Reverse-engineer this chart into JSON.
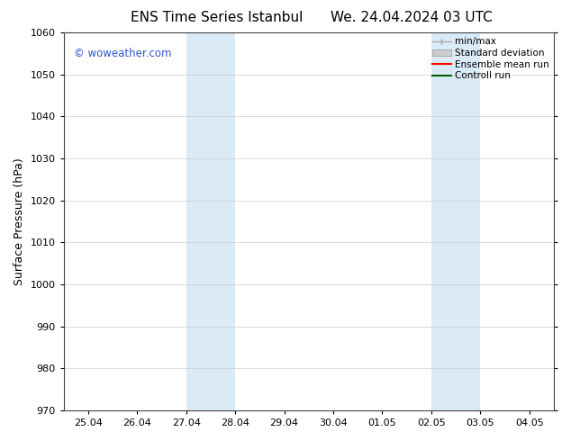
{
  "title_left": "ENS Time Series Istanbul",
  "title_right": "We. 24.04.2024 03 UTC",
  "ylabel": "Surface Pressure (hPa)",
  "ylim": [
    970,
    1060
  ],
  "yticks": [
    970,
    980,
    990,
    1000,
    1010,
    1020,
    1030,
    1040,
    1050,
    1060
  ],
  "xtick_labels": [
    "25.04",
    "26.04",
    "27.04",
    "28.04",
    "29.04",
    "30.04",
    "01.05",
    "02.05",
    "03.05",
    "04.05"
  ],
  "xtick_positions": [
    0,
    1,
    2,
    3,
    4,
    5,
    6,
    7,
    8,
    9
  ],
  "shaded_bands": [
    {
      "x_start": 2,
      "x_end": 3,
      "color": "#daeaf7"
    },
    {
      "x_start": 7,
      "x_end": 8,
      "color": "#daeaf7"
    }
  ],
  "watermark_text": "© woweather.com",
  "watermark_color": "#3355cc",
  "background_color": "#ffffff",
  "legend_items": [
    {
      "label": "min/max",
      "color": "#aaaaaa",
      "type": "minmax"
    },
    {
      "label": "Standard deviation",
      "color": "#cccccc",
      "type": "band"
    },
    {
      "label": "Ensemble mean run",
      "color": "#ff0000",
      "type": "line"
    },
    {
      "label": "Controll run",
      "color": "#006600",
      "type": "line"
    }
  ],
  "title_fontsize": 11,
  "tick_fontsize": 8,
  "ylabel_fontsize": 9,
  "legend_fontsize": 7.5,
  "grid_color": "#cccccc",
  "ax_linecolor": "#444444"
}
